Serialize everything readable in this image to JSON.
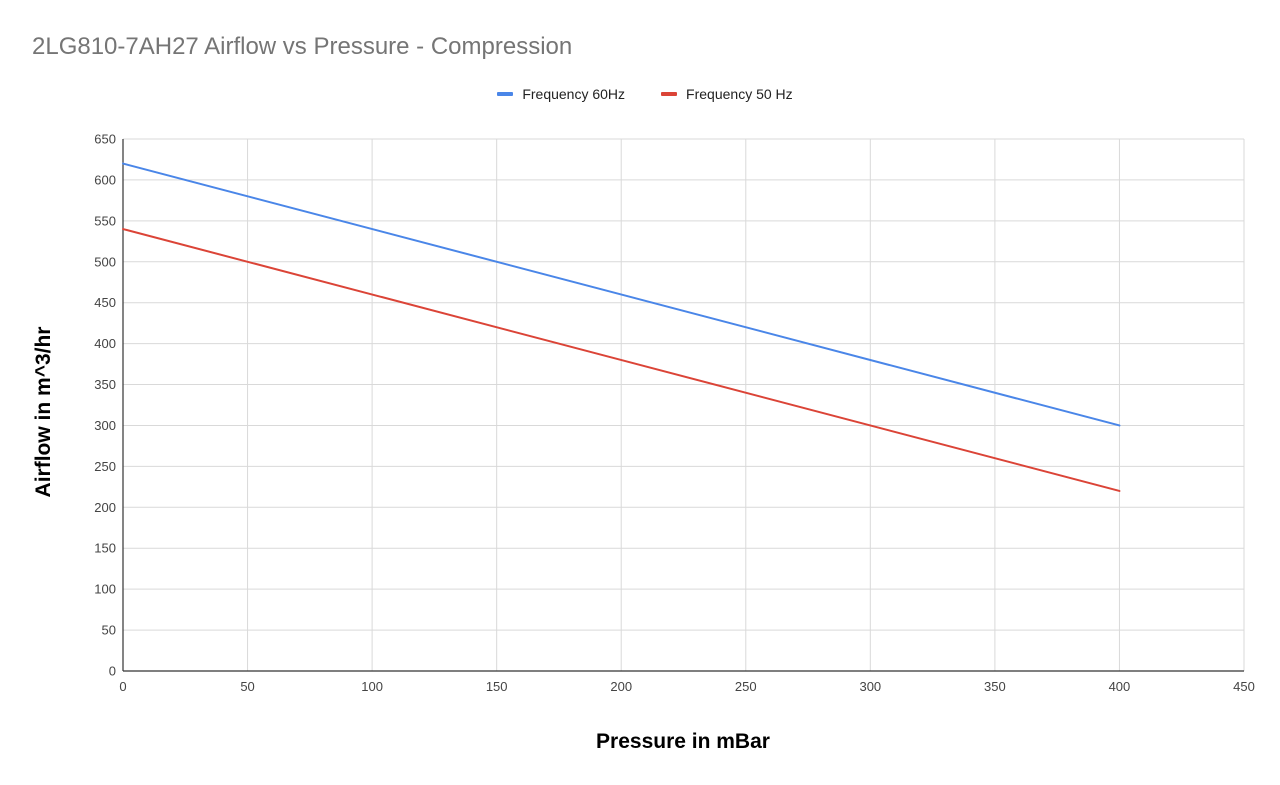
{
  "chart_data": {
    "type": "line",
    "title": "2LG810-7AH27 Airflow vs Pressure - Compression",
    "xlabel": "Pressure in mBar",
    "ylabel": "Airflow in m^3/hr",
    "xlim": [
      0,
      450
    ],
    "ylim": [
      0,
      650
    ],
    "x_ticks": [
      0,
      50,
      100,
      150,
      200,
      250,
      300,
      350,
      400,
      450
    ],
    "y_ticks": [
      0,
      50,
      100,
      150,
      200,
      250,
      300,
      350,
      400,
      450,
      500,
      550,
      600,
      650
    ],
    "grid": true,
    "legend_position": "top",
    "series": [
      {
        "name": "Frequency 60Hz",
        "color": "#4a86e8",
        "x": [
          0,
          400
        ],
        "y": [
          620,
          300
        ]
      },
      {
        "name": "Frequency 50 Hz",
        "color": "#db4437",
        "x": [
          0,
          400
        ],
        "y": [
          540,
          220
        ]
      }
    ]
  }
}
